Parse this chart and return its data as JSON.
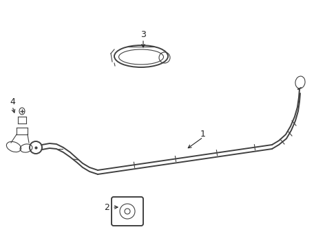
{
  "background_color": "#ffffff",
  "line_color": "#404040",
  "label_color": "#222222",
  "lw_main": 1.4,
  "lw_thin": 0.8,
  "lw_thick": 2.0
}
